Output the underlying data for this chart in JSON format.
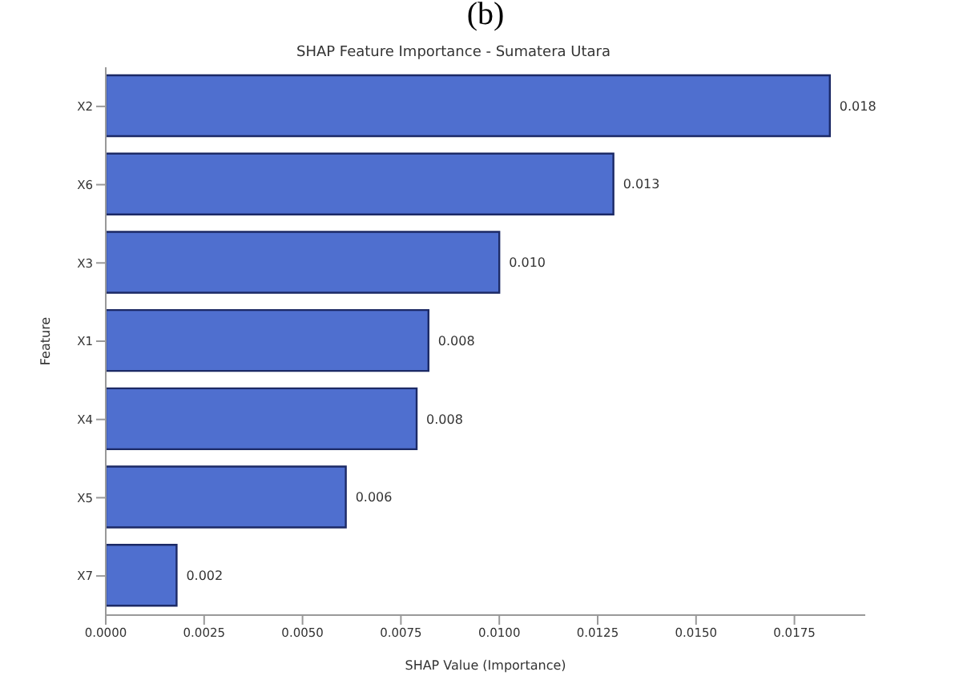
{
  "chart_data": {
    "type": "bar",
    "orientation": "horizontal",
    "title": "SHAP Feature Importance - Sumatera Utara",
    "xlabel": "SHAP Value (Importance)",
    "ylabel": "Feature",
    "annotations": [
      "(b)"
    ],
    "categories": [
      "X2",
      "X6",
      "X3",
      "X1",
      "X4",
      "X5",
      "X7"
    ],
    "values": [
      0.0184,
      0.0129,
      0.01,
      0.0082,
      0.0079,
      0.0061,
      0.0018
    ],
    "value_labels": [
      "0.018",
      "0.013",
      "0.010",
      "0.008",
      "0.008",
      "0.006",
      "0.002"
    ],
    "color": "#4f6fcf",
    "xlim": [
      0,
      0.0193
    ],
    "xticks": [
      {
        "value": 0,
        "label": "0.0000"
      },
      {
        "value": 0.0025,
        "label": "0.0025"
      },
      {
        "value": 0.005,
        "label": "0.0050"
      },
      {
        "value": 0.0075,
        "label": "0.0075"
      },
      {
        "value": 0.01,
        "label": "0.0100"
      },
      {
        "value": 0.0125,
        "label": "0.0125"
      },
      {
        "value": 0.015,
        "label": "0.0150"
      },
      {
        "value": 0.0175,
        "label": "0.0175"
      }
    ],
    "grid": false,
    "legend": false
  }
}
